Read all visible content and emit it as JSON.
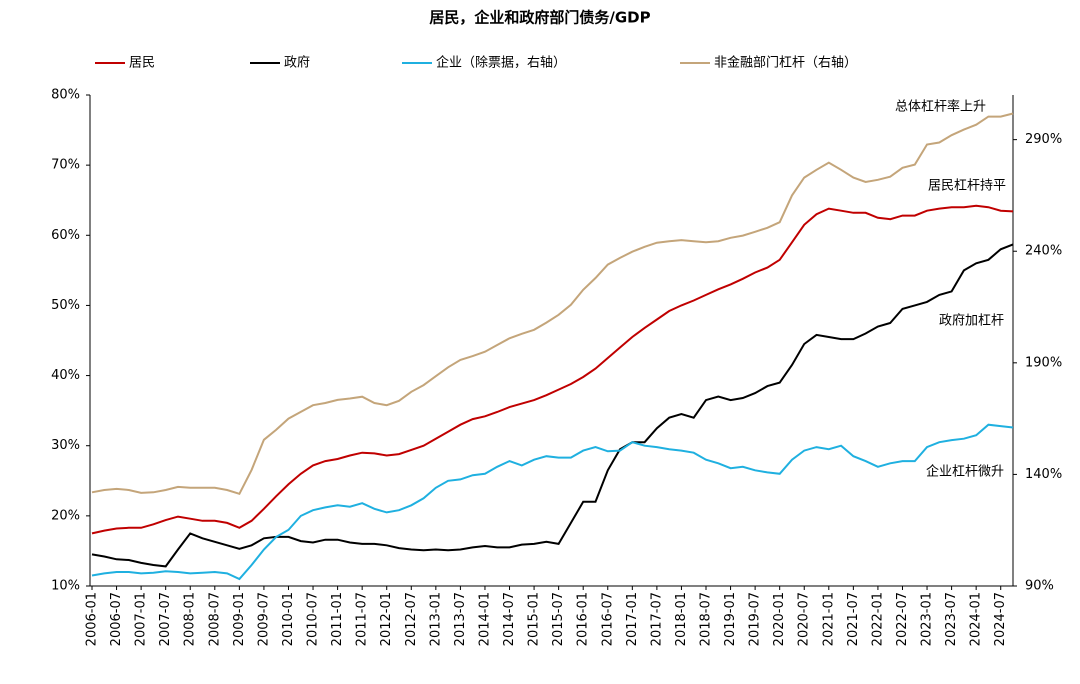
{
  "chart_data": {
    "type": "line",
    "title": "居民，企业和政府部门债务/GDP",
    "categories": [
      "2006-01",
      null,
      "2006-07",
      null,
      "2007-01",
      null,
      "2007-07",
      null,
      "2008-01",
      null,
      "2008-07",
      null,
      "2009-01",
      null,
      "2009-07",
      null,
      "2010-01",
      null,
      "2010-07",
      null,
      "2011-01",
      null,
      "2011-07",
      null,
      "2012-01",
      null,
      "2012-07",
      null,
      "2013-01",
      null,
      "2013-07",
      null,
      "2014-01",
      null,
      "2014-07",
      null,
      "2015-01",
      null,
      "2015-07",
      null,
      "2016-01",
      null,
      "2016-07",
      null,
      "2017-01",
      null,
      "2017-07",
      null,
      "2018-01",
      null,
      "2018-07",
      null,
      "2019-01",
      null,
      "2019-07",
      null,
      "2020-01",
      null,
      "2020-07",
      null,
      "2021-01",
      null,
      "2021-07",
      null,
      "2022-01",
      null,
      "2022-07",
      null,
      "2023-01",
      null,
      "2023-07",
      null,
      "2024-01",
      null,
      "2024-07",
      null
    ],
    "series": [
      {
        "name": "居民",
        "color": "#c00000",
        "values": [
          17.5,
          17.9,
          18.2,
          18.3,
          18.3,
          18.8,
          19.4,
          19.9,
          19.6,
          19.3,
          19.3,
          19.0,
          18.3,
          19.3,
          21.0,
          22.8,
          24.5,
          26.0,
          27.2,
          27.8,
          28.1,
          28.6,
          29.0,
          28.9,
          28.6,
          28.8,
          29.4,
          30.0,
          31.0,
          32.0,
          33.0,
          33.8,
          34.2,
          34.8,
          35.5,
          36.0,
          36.5,
          37.2,
          38.0,
          38.8,
          39.8,
          41.0,
          42.5,
          44.0,
          45.5,
          46.8,
          48.0,
          49.2,
          50.0,
          50.7,
          51.5,
          52.3,
          53.0,
          53.8,
          54.7,
          55.4,
          56.5,
          59.0,
          61.5,
          63.0,
          63.8,
          63.5,
          63.2,
          63.2,
          62.5,
          62.3,
          62.8,
          62.8,
          63.5,
          63.8,
          64.0,
          64.0,
          64.2,
          64.0,
          63.5,
          63.4
        ]
      },
      {
        "name": "政府",
        "color": "#000000",
        "values": [
          14.5,
          14.2,
          13.8,
          13.7,
          13.3,
          13.0,
          12.8,
          15.2,
          17.5,
          16.8,
          16.3,
          15.8,
          15.3,
          15.8,
          16.8,
          17.0,
          17.0,
          16.4,
          16.2,
          16.6,
          16.6,
          16.2,
          16.0,
          16.0,
          15.8,
          15.4,
          15.2,
          15.1,
          15.2,
          15.1,
          15.2,
          15.5,
          15.7,
          15.5,
          15.5,
          15.9,
          16.0,
          16.3,
          16.0,
          19.0,
          22.0,
          22.0,
          26.5,
          29.5,
          30.5,
          30.5,
          32.5,
          34.0,
          34.5,
          34.0,
          36.5,
          37.0,
          36.5,
          36.8,
          37.5,
          38.5,
          39.0,
          41.5,
          44.5,
          45.8,
          45.5,
          45.2,
          45.2,
          46.0,
          47.0,
          47.5,
          49.5,
          50.0,
          50.5,
          51.5,
          52.0,
          55.0,
          56.0,
          56.5,
          58.0,
          58.7
        ]
      },
      {
        "name": "企业（除票据，右轴）",
        "color": "#1fb0e0",
        "values": [
          11.5,
          11.8,
          12.0,
          12.0,
          11.8,
          11.9,
          12.1,
          12.0,
          11.8,
          11.9,
          12.0,
          11.8,
          11.0,
          13.0,
          15.2,
          17.0,
          18.0,
          20.0,
          20.8,
          21.2,
          21.5,
          21.3,
          21.8,
          21.0,
          20.5,
          20.8,
          21.5,
          22.5,
          24.0,
          25.0,
          25.2,
          25.8,
          26.0,
          27.0,
          27.8,
          27.2,
          28.0,
          28.5,
          28.3,
          28.3,
          29.3,
          29.8,
          29.2,
          29.3,
          30.5,
          30.0,
          29.8,
          29.5,
          29.3,
          29.0,
          28.0,
          27.5,
          26.8,
          27.0,
          26.5,
          26.2,
          26.0,
          28.0,
          29.3,
          29.8,
          29.5,
          30.0,
          28.5,
          27.8,
          27.0,
          27.5,
          27.8,
          27.8,
          29.8,
          30.5,
          30.8,
          31.0,
          31.5,
          33.0,
          32.8,
          32.6
        ]
      },
      {
        "name": "非金融部门杠杆（右轴）",
        "color": "#c4a57a",
        "axis": "y2",
        "values": [
          132,
          133,
          133.5,
          133,
          131.7,
          132,
          133,
          134.4,
          134,
          134,
          134,
          133,
          131.3,
          142,
          155.5,
          160,
          165,
          168,
          171,
          172,
          173.4,
          174,
          174.8,
          172,
          171,
          173,
          177,
          180,
          184,
          188,
          191.3,
          193,
          195,
          198,
          201,
          203,
          204.8,
          208,
          211.5,
          216,
          222.7,
          228,
          234,
          237,
          239.8,
          242,
          243.8,
          244.5,
          245,
          244.5,
          244,
          244.5,
          246,
          247,
          248.7,
          250.5,
          253,
          265,
          273,
          276.5,
          279.7,
          276.5,
          273,
          271,
          272,
          273.4,
          277.4,
          278.8,
          287.8,
          288.7,
          292,
          294.5,
          296.7,
          300.3,
          300.3,
          301.7
        ]
      }
    ],
    "ylim": [
      10,
      80
    ],
    "yticks": [
      {
        "value": 10,
        "label": "10%"
      },
      {
        "value": 20,
        "label": "20%"
      },
      {
        "value": 30,
        "label": "30%"
      },
      {
        "value": 40,
        "label": "40%"
      },
      {
        "value": 50,
        "label": "50%"
      },
      {
        "value": 60,
        "label": "60%"
      },
      {
        "value": 70,
        "label": "70%"
      },
      {
        "value": 80,
        "label": "80%"
      }
    ],
    "y2lim": [
      90,
      310
    ],
    "y2ticks": [
      {
        "value": 90,
        "label": "90%"
      },
      {
        "value": 140,
        "label": "140%"
      },
      {
        "value": 190,
        "label": "190%"
      },
      {
        "value": 240,
        "label": "240%"
      },
      {
        "value": 290,
        "label": "290%"
      }
    ],
    "grid": false,
    "annotations": [
      {
        "text": "总体杠杆率上升",
        "color": "#a0804a"
      },
      {
        "text": "居民杠杆持平",
        "color": "#c00000"
      },
      {
        "text": "政府加杠杆",
        "color": "#000000"
      },
      {
        "text": "企业杠杆微升",
        "color": "#1fb0e0"
      }
    ]
  }
}
